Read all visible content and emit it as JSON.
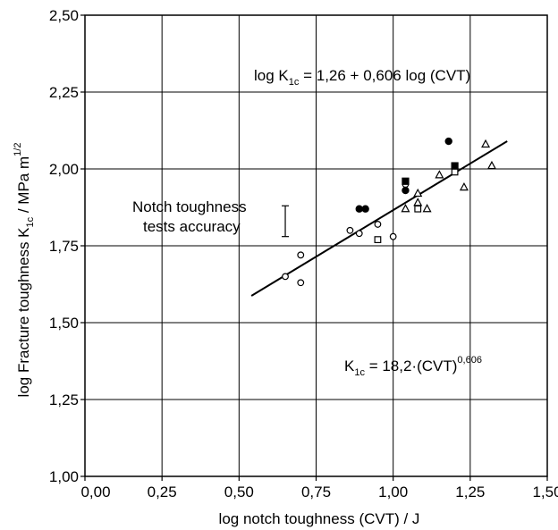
{
  "chart_data": {
    "type": "scatter",
    "xlabel": "log notch toughness (CVT) / J",
    "ylabel_parts": [
      "log Fracture toughness K",
      "1c",
      " / MPa m",
      "1/2"
    ],
    "xlim": [
      0.0,
      1.5
    ],
    "ylim": [
      1.0,
      2.5
    ],
    "x_ticks": [
      0.0,
      0.25,
      0.5,
      0.75,
      1.0,
      1.25,
      1.5
    ],
    "x_tick_labels": [
      "0,00",
      "0,25",
      "0,50",
      "0,75",
      "1,00",
      "1,25",
      "1,50"
    ],
    "y_ticks": [
      1.0,
      1.25,
      1.5,
      1.75,
      2.0,
      2.25,
      2.5
    ],
    "y_tick_labels": [
      "1,00",
      "1,25",
      "1,50",
      "1,75",
      "2,00",
      "2,25",
      "2,50"
    ],
    "grid": true,
    "series": [
      {
        "marker": "open-circle",
        "points": [
          [
            0.65,
            1.65
          ],
          [
            0.7,
            1.72
          ],
          [
            0.7,
            1.63
          ],
          [
            0.86,
            1.8
          ],
          [
            0.89,
            1.79
          ],
          [
            0.95,
            1.82
          ],
          [
            1.0,
            1.78
          ],
          [
            1.04,
            1.95
          ]
        ]
      },
      {
        "marker": "filled-circle",
        "points": [
          [
            0.89,
            1.87
          ],
          [
            0.91,
            1.87
          ],
          [
            1.04,
            1.93
          ],
          [
            1.18,
            2.09
          ]
        ]
      },
      {
        "marker": "open-square",
        "points": [
          [
            0.95,
            1.77
          ],
          [
            1.08,
            1.87
          ],
          [
            1.2,
            1.99
          ]
        ]
      },
      {
        "marker": "filled-square",
        "points": [
          [
            1.04,
            1.96
          ],
          [
            1.2,
            2.01
          ]
        ]
      },
      {
        "marker": "open-triangle",
        "points": [
          [
            1.04,
            1.87
          ],
          [
            1.08,
            1.92
          ],
          [
            1.08,
            1.89
          ],
          [
            1.11,
            1.87
          ],
          [
            1.15,
            1.98
          ],
          [
            1.23,
            1.94
          ],
          [
            1.3,
            2.08
          ],
          [
            1.32,
            2.01
          ]
        ]
      }
    ],
    "fit_line": {
      "intercept": 1.26,
      "slope": 0.606,
      "x_range": [
        0.54,
        1.37
      ]
    },
    "error_bar": {
      "x": 0.65,
      "y_low": 1.78,
      "y_high": 1.88
    },
    "annotations": {
      "equation_log": {
        "prefix": "log K",
        "sub": "1c",
        "rest": " = 1,26 + 0,606 log (CVT)"
      },
      "equation_power": {
        "prefix": "K",
        "sub": "1c",
        "mid": " = 18,2·(CVT)",
        "sup": "0,606"
      },
      "accuracy_line1": "Notch toughness",
      "accuracy_line2": "tests accuracy"
    }
  }
}
